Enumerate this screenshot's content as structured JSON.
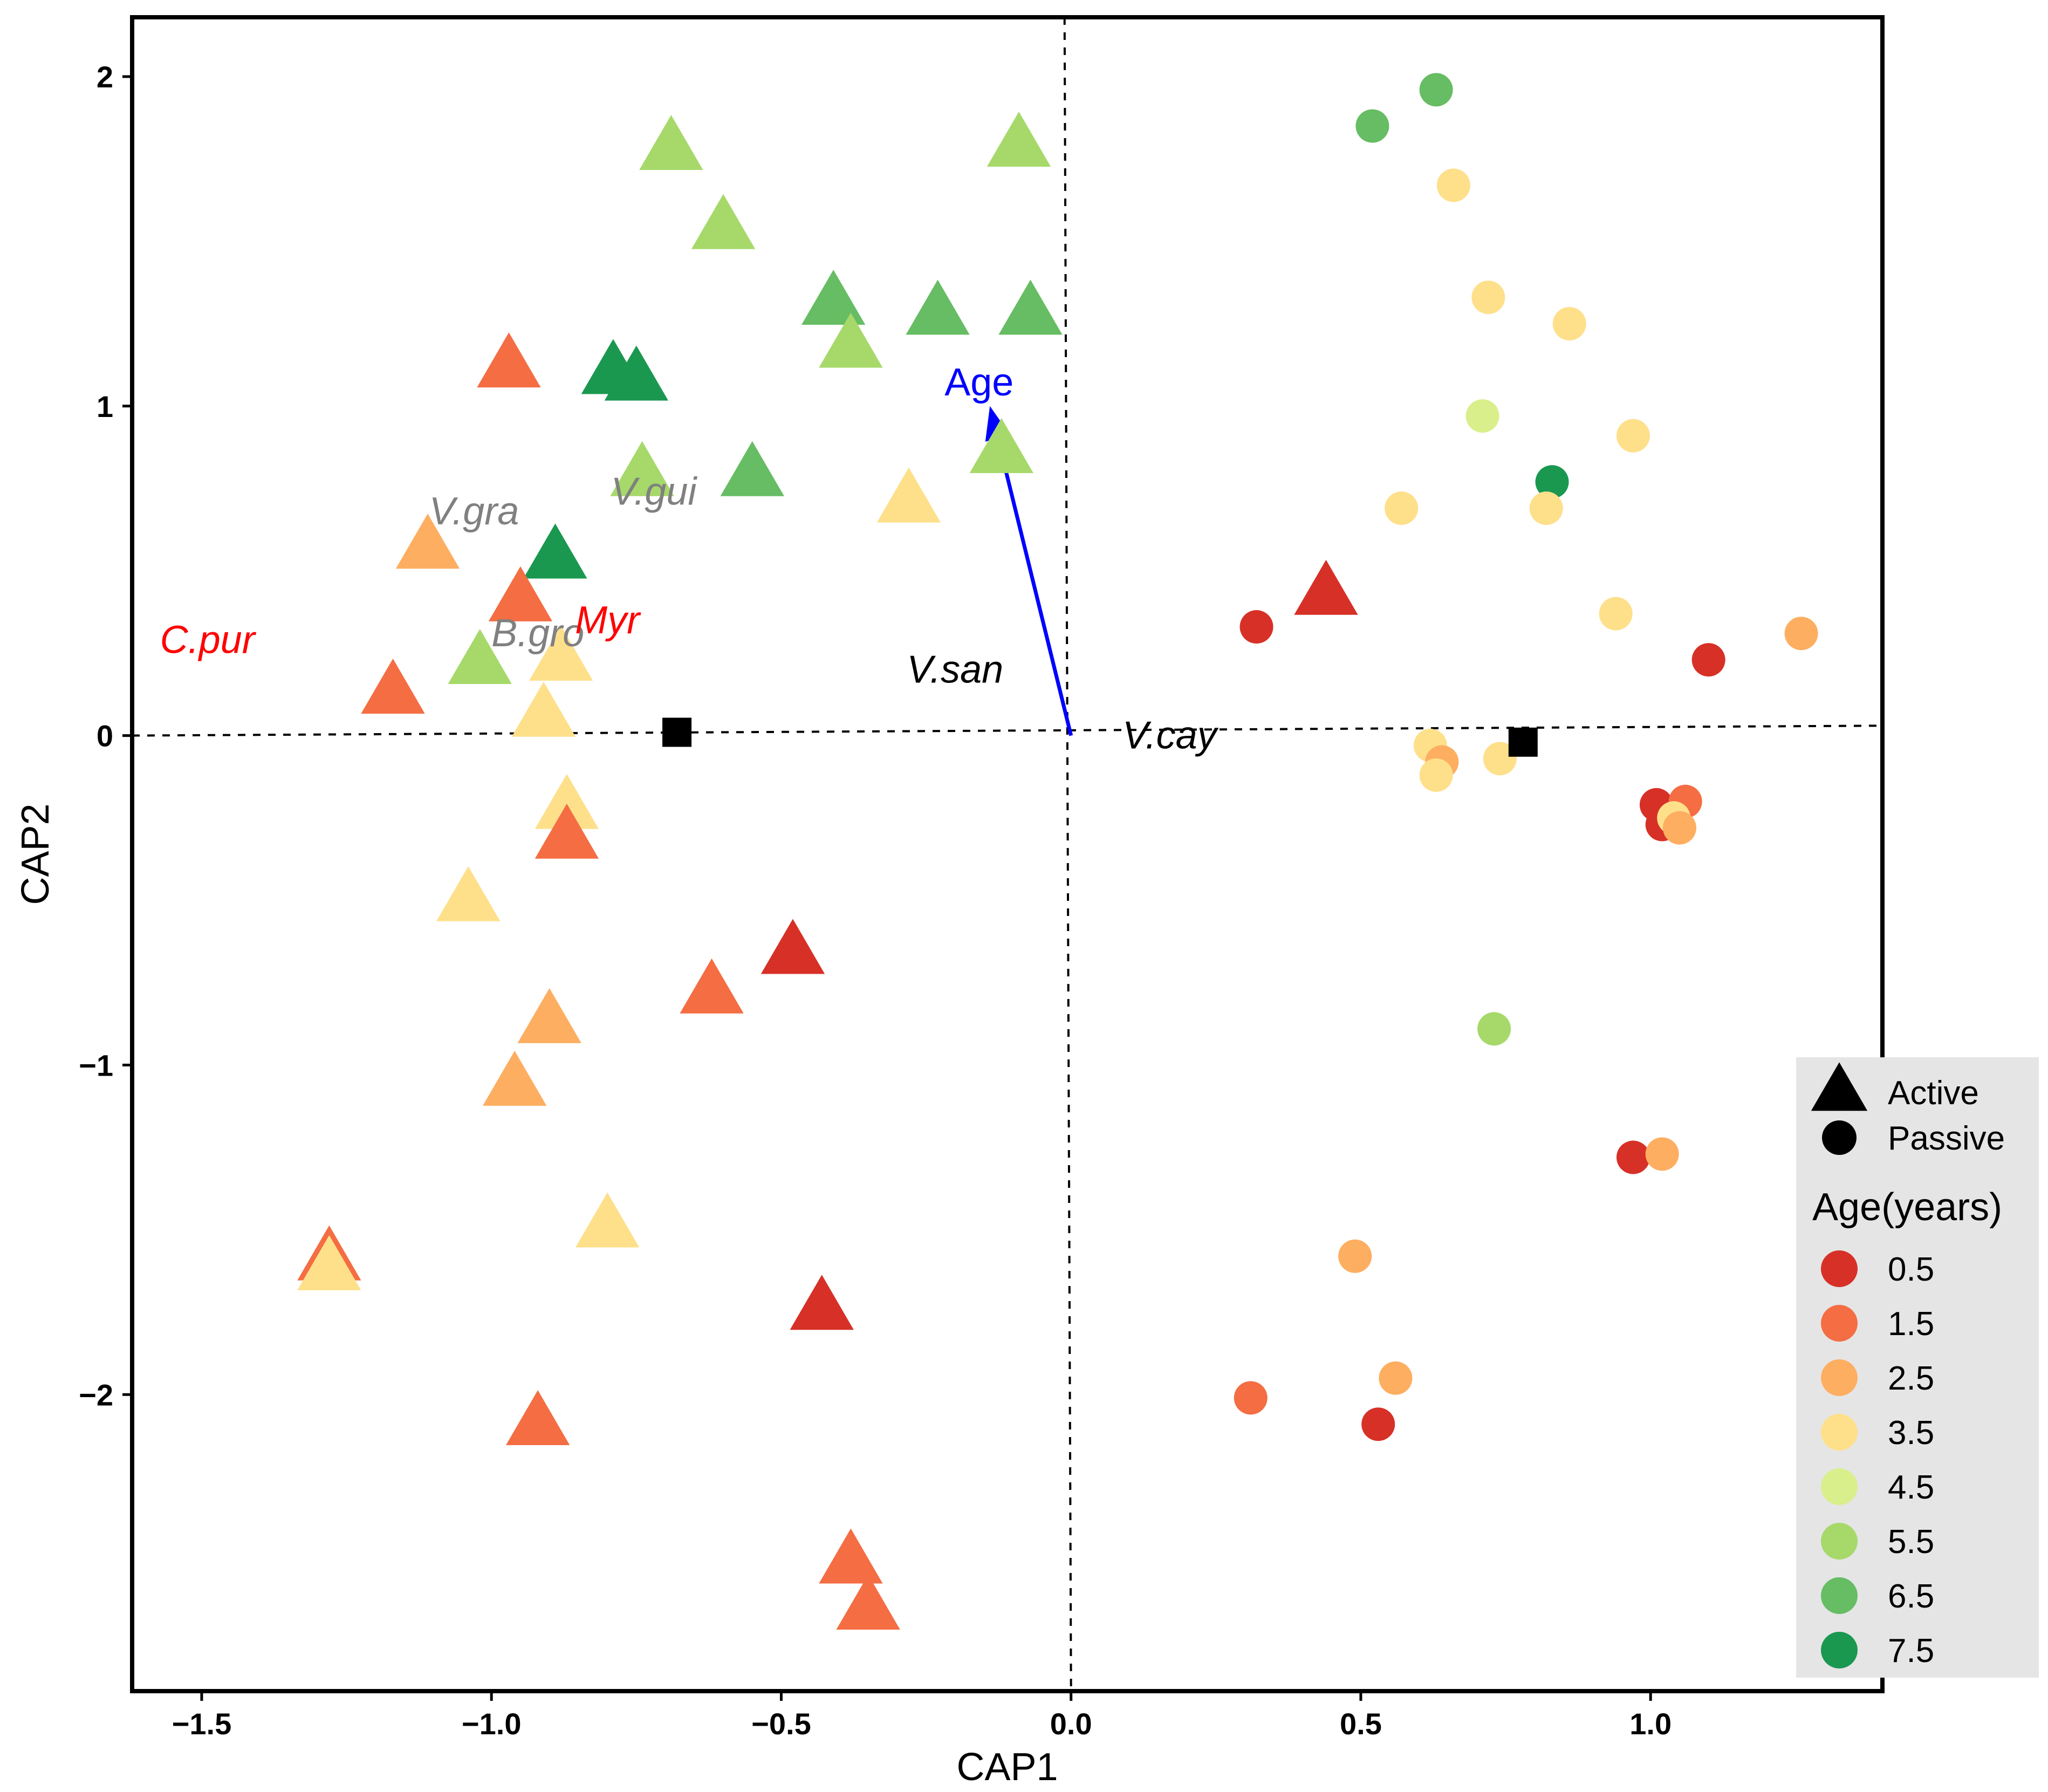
{
  "chart_data": {
    "type": "scatter",
    "title": "",
    "xlabel": "CAP1",
    "ylabel": "CAP2",
    "xlim": [
      -1.62,
      1.4
    ],
    "ylim": [
      -2.9,
      2.18
    ],
    "x_ticks": [
      -1.5,
      -1.0,
      -0.5,
      0.0,
      0.5,
      1.0
    ],
    "x_tick_labels": [
      "−1.5",
      "−1.0",
      "−0.5",
      "0.0",
      "0.5",
      "1.0"
    ],
    "y_ticks": [
      2,
      1,
      0,
      -1,
      -2
    ],
    "y_tick_labels": [
      "2",
      "1",
      "0",
      "−1",
      "−2"
    ],
    "grid": false,
    "reference_lines": {
      "vertical": [
        [
          0,
          2.18
        ],
        [
          0,
          -2.9
        ]
      ],
      "horizontal": [
        [
          -1.62,
          0.0
        ],
        [
          1.4,
          0.03
        ]
      ]
    },
    "palette": {
      "0.5": "#d73027",
      "1.5": "#f46d43",
      "2.5": "#fdae61",
      "3.5": "#fee08b",
      "4.5": "#d9ef8b",
      "5.5": "#a6d96a",
      "6.5": "#66bd63",
      "7.5": "#1a9850"
    },
    "legend": {
      "position": "right-bottom",
      "shape_items": [
        {
          "shape": "triangle",
          "label": "Active"
        },
        {
          "shape": "circle",
          "label": "Passive"
        }
      ],
      "age_title": "Age(years)",
      "age_items": [
        {
          "age": "0.5",
          "label": "0.5"
        },
        {
          "age": "1.5",
          "label": "1.5"
        },
        {
          "age": "2.5",
          "label": "2.5"
        },
        {
          "age": "3.5",
          "label": "3.5"
        },
        {
          "age": "4.5",
          "label": "4.5"
        },
        {
          "age": "5.5",
          "label": "5.5"
        },
        {
          "age": "6.5",
          "label": "6.5"
        },
        {
          "age": "7.5",
          "label": "7.5"
        }
      ]
    },
    "series": [
      {
        "name": "Active",
        "shape": "triangle",
        "points": [
          {
            "x": -0.69,
            "y": 1.78,
            "age": "5.5"
          },
          {
            "x": -0.6,
            "y": 1.54,
            "age": "5.5"
          },
          {
            "x": -0.09,
            "y": 1.79,
            "age": "5.5"
          },
          {
            "x": -0.41,
            "y": 1.31,
            "age": "6.5"
          },
          {
            "x": -0.23,
            "y": 1.28,
            "age": "6.5"
          },
          {
            "x": -0.07,
            "y": 1.28,
            "age": "6.5"
          },
          {
            "x": -0.38,
            "y": 1.18,
            "age": "5.5"
          },
          {
            "x": -0.97,
            "y": 1.12,
            "age": "1.5"
          },
          {
            "x": -0.79,
            "y": 1.1,
            "age": "7.5"
          },
          {
            "x": -0.75,
            "y": 1.08,
            "age": "7.5"
          },
          {
            "x": -0.12,
            "y": 0.86,
            "age": "5.5"
          },
          {
            "x": -0.74,
            "y": 0.79,
            "age": "5.5"
          },
          {
            "x": -0.55,
            "y": 0.79,
            "age": "6.5"
          },
          {
            "x": -0.28,
            "y": 0.71,
            "age": "3.5"
          },
          {
            "x": -1.11,
            "y": 0.57,
            "age": "2.5"
          },
          {
            "x": -0.89,
            "y": 0.54,
            "age": "7.5"
          },
          {
            "x": -0.95,
            "y": 0.41,
            "age": "1.5"
          },
          {
            "x": 0.44,
            "y": 0.43,
            "age": "0.5"
          },
          {
            "x": -1.02,
            "y": 0.22,
            "age": "5.5"
          },
          {
            "x": -0.88,
            "y": 0.23,
            "age": "3.5"
          },
          {
            "x": -1.17,
            "y": 0.13,
            "age": "1.5"
          },
          {
            "x": -0.91,
            "y": 0.06,
            "age": "3.5"
          },
          {
            "x": -0.87,
            "y": -0.22,
            "age": "3.5"
          },
          {
            "x": -0.87,
            "y": -0.31,
            "age": "1.5"
          },
          {
            "x": -1.04,
            "y": -0.5,
            "age": "3.5"
          },
          {
            "x": -0.48,
            "y": -0.66,
            "age": "0.5"
          },
          {
            "x": -0.62,
            "y": -0.78,
            "age": "1.5"
          },
          {
            "x": -0.9,
            "y": -0.87,
            "age": "2.5"
          },
          {
            "x": -0.96,
            "y": -1.06,
            "age": "2.5"
          },
          {
            "x": -0.8,
            "y": -1.49,
            "age": "3.5"
          },
          {
            "x": -1.28,
            "y": -1.59,
            "age": "1.5"
          },
          {
            "x": -1.28,
            "y": -1.62,
            "age": "3.5"
          },
          {
            "x": -0.43,
            "y": -1.74,
            "age": "0.5"
          },
          {
            "x": -0.92,
            "y": -2.09,
            "age": "1.5"
          },
          {
            "x": -0.38,
            "y": -2.51,
            "age": "1.5"
          },
          {
            "x": -0.35,
            "y": -2.65,
            "age": "1.5"
          }
        ]
      },
      {
        "name": "Passive",
        "shape": "circle",
        "points": [
          {
            "x": 0.63,
            "y": 1.96,
            "age": "6.5"
          },
          {
            "x": 0.52,
            "y": 1.85,
            "age": "6.5"
          },
          {
            "x": 0.66,
            "y": 1.67,
            "age": "3.5"
          },
          {
            "x": 0.72,
            "y": 1.33,
            "age": "3.5"
          },
          {
            "x": 0.86,
            "y": 1.25,
            "age": "3.5"
          },
          {
            "x": 0.71,
            "y": 0.97,
            "age": "4.5"
          },
          {
            "x": 0.97,
            "y": 0.91,
            "age": "3.5"
          },
          {
            "x": 0.83,
            "y": 0.77,
            "age": "7.5"
          },
          {
            "x": 0.57,
            "y": 0.69,
            "age": "3.5"
          },
          {
            "x": 0.82,
            "y": 0.69,
            "age": "3.5"
          },
          {
            "x": 0.94,
            "y": 0.37,
            "age": "3.5"
          },
          {
            "x": 0.32,
            "y": 0.33,
            "age": "0.5"
          },
          {
            "x": 1.26,
            "y": 0.31,
            "age": "2.5"
          },
          {
            "x": 1.1,
            "y": 0.23,
            "age": "0.5"
          },
          {
            "x": 0.62,
            "y": -0.03,
            "age": "3.5"
          },
          {
            "x": 0.64,
            "y": -0.08,
            "age": "2.5"
          },
          {
            "x": 0.74,
            "y": -0.07,
            "age": "3.5"
          },
          {
            "x": 0.63,
            "y": -0.12,
            "age": "3.5"
          },
          {
            "x": 1.01,
            "y": -0.21,
            "age": "0.5"
          },
          {
            "x": 1.06,
            "y": -0.2,
            "age": "1.5"
          },
          {
            "x": 1.02,
            "y": -0.27,
            "age": "0.5"
          },
          {
            "x": 1.04,
            "y": -0.25,
            "age": "3.5"
          },
          {
            "x": 1.05,
            "y": -0.28,
            "age": "2.5"
          },
          {
            "x": 0.73,
            "y": -0.89,
            "age": "5.5"
          },
          {
            "x": 0.97,
            "y": -1.28,
            "age": "0.5"
          },
          {
            "x": 1.02,
            "y": -1.27,
            "age": "2.5"
          },
          {
            "x": 0.49,
            "y": -1.58,
            "age": "2.5"
          },
          {
            "x": 0.31,
            "y": -2.01,
            "age": "1.5"
          },
          {
            "x": 0.56,
            "y": -1.95,
            "age": "2.5"
          },
          {
            "x": 0.53,
            "y": -2.09,
            "age": "0.5"
          }
        ]
      },
      {
        "name": "Centroids",
        "shape": "square",
        "points": [
          {
            "x": -0.68,
            "y": 0.01
          },
          {
            "x": 0.78,
            "y": -0.02
          }
        ]
      }
    ],
    "vector": {
      "label": "Age",
      "x0": 0.0,
      "y0": 0.0,
      "x1": -0.14,
      "y1": 1.0,
      "color": "#0000ff"
    },
    "species_labels": [
      {
        "text": "V.gra",
        "x": -1.03,
        "y": 0.68,
        "color": "#808080"
      },
      {
        "text": "V.gui",
        "x": -0.72,
        "y": 0.74,
        "color": "#808080"
      },
      {
        "text": "B.gro",
        "x": -0.92,
        "y": 0.31,
        "color": "#808080"
      },
      {
        "text": "Myr",
        "x": -0.8,
        "y": 0.35,
        "color": "#ff0000"
      },
      {
        "text": "C.pur",
        "x": -1.49,
        "y": 0.29,
        "color": "#ff0000"
      },
      {
        "text": "V.san",
        "x": -0.2,
        "y": 0.2,
        "color": "#000000"
      },
      {
        "text": "V.cay",
        "x": 0.17,
        "y": 0.0,
        "color": "#000000"
      }
    ]
  }
}
